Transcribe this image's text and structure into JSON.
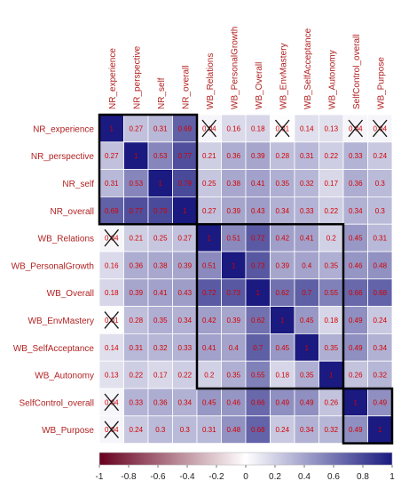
{
  "chart_data": {
    "type": "heatmap",
    "title": "",
    "variables": [
      "NR_experience",
      "NR_perspective",
      "NR_self",
      "NR_overall",
      "WB_Relations",
      "WB_PersonalGrowth",
      "WB_Overall",
      "WB_EnvMastery",
      "WB_SelfAcceptance",
      "WB_Autonomy",
      "SelfControl_overall",
      "WB_Purpose"
    ],
    "matrix": [
      [
        1.0,
        0.27,
        0.31,
        0.69,
        0.04,
        0.16,
        0.18,
        0.01,
        0.14,
        0.13,
        0.04,
        0.04
      ],
      [
        0.27,
        1.0,
        0.53,
        0.77,
        0.21,
        0.36,
        0.39,
        0.28,
        0.31,
        0.22,
        0.33,
        0.24
      ],
      [
        0.31,
        0.53,
        1.0,
        0.79,
        0.25,
        0.38,
        0.41,
        0.35,
        0.32,
        0.17,
        0.36,
        0.3
      ],
      [
        0.69,
        0.77,
        0.79,
        1.0,
        0.27,
        0.39,
        0.43,
        0.34,
        0.33,
        0.22,
        0.34,
        0.3
      ],
      [
        0.04,
        0.21,
        0.25,
        0.27,
        1.0,
        0.51,
        0.72,
        0.42,
        0.41,
        0.2,
        0.45,
        0.31
      ],
      [
        0.16,
        0.36,
        0.38,
        0.39,
        0.51,
        1.0,
        0.73,
        0.39,
        0.4,
        0.35,
        0.46,
        0.48
      ],
      [
        0.18,
        0.39,
        0.41,
        0.43,
        0.72,
        0.73,
        1.0,
        0.62,
        0.7,
        0.55,
        0.66,
        0.68
      ],
      [
        0.01,
        0.28,
        0.35,
        0.34,
        0.42,
        0.39,
        0.62,
        1.0,
        0.45,
        0.18,
        0.49,
        0.24
      ],
      [
        0.14,
        0.31,
        0.32,
        0.33,
        0.41,
        0.4,
        0.7,
        0.45,
        1.0,
        0.35,
        0.49,
        0.34
      ],
      [
        0.13,
        0.22,
        0.17,
        0.22,
        0.2,
        0.35,
        0.55,
        0.18,
        0.35,
        1.0,
        0.26,
        0.32
      ],
      [
        0.04,
        0.33,
        0.36,
        0.34,
        0.45,
        0.46,
        0.66,
        0.49,
        0.49,
        0.26,
        1.0,
        0.49
      ],
      [
        0.04,
        0.24,
        0.3,
        0.3,
        0.31,
        0.48,
        0.68,
        0.24,
        0.34,
        0.32,
        0.49,
        1.0
      ]
    ],
    "nonsignificant_cells": [
      [
        0,
        4
      ],
      [
        0,
        7
      ],
      [
        0,
        10
      ],
      [
        0,
        11
      ],
      [
        4,
        0
      ],
      [
        7,
        0
      ],
      [
        10,
        0
      ],
      [
        11,
        0
      ]
    ],
    "clusters": [
      [
        0,
        3
      ],
      [
        4,
        9
      ],
      [
        10,
        11
      ]
    ],
    "color_scale": {
      "min": -1,
      "max": 1,
      "low_color": "#67001f",
      "mid_color": "#ffffff",
      "high_color": "#1a1a80",
      "ticks": [
        "-1",
        "-0.8",
        "-0.6",
        "-0.4",
        "-0.2",
        "0",
        "0.2",
        "0.4",
        "0.6",
        "0.8",
        "1"
      ]
    },
    "legend_placement": "bottom"
  }
}
